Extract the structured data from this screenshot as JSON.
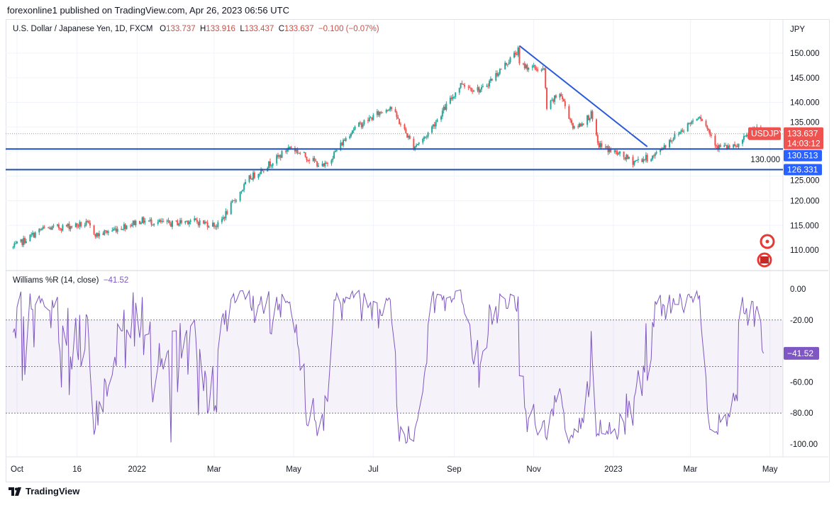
{
  "header": {
    "published": "forexonline1 published on TradingView.com, Apr 26, 2023 06:56 UTC"
  },
  "legend": {
    "symbol": "U.S. Dollar / Japanese Yen, 1D, FXCM",
    "o_label": "O",
    "o": "133.737",
    "h_label": "H",
    "h": "133.916",
    "l_label": "L",
    "l": "133.437",
    "c_label": "C",
    "c": "133.637",
    "change": "−0.100 (−0.07%)"
  },
  "indicator": {
    "name": "Williams %R (14, close)",
    "value": "−41.52"
  },
  "footer": {
    "brand": "TradingView"
  },
  "chart_data": [
    {
      "type": "candlestick",
      "title": "U.S. Dollar / Japanese Yen, 1D, FXCM",
      "currency": "JPY",
      "ylim": [
        105,
        155
      ],
      "yticks": [
        "150.000",
        "145.000",
        "140.000",
        "135.000",
        "130.000",
        "125.000",
        "120.000",
        "115.000",
        "110.000"
      ],
      "xticks": [
        {
          "label": "Oct",
          "date": "2021-10-01"
        },
        {
          "label": "16",
          "date": "2021-11-16"
        },
        {
          "label": "2022",
          "date": "2022-01-01"
        },
        {
          "label": "Mar",
          "date": "2022-03-01"
        },
        {
          "label": "May",
          "date": "2022-05-01"
        },
        {
          "label": "Jul",
          "date": "2022-07-01"
        },
        {
          "label": "Sep",
          "date": "2022-09-01"
        },
        {
          "label": "Nov",
          "date": "2022-11-01"
        },
        {
          "label": "2023",
          "date": "2023-01-01"
        },
        {
          "label": "Mar",
          "date": "2023-03-01"
        },
        {
          "label": "May",
          "date": "2023-05-01"
        }
      ],
      "approx_close_path": [
        [
          "2021-09-28",
          110.5
        ],
        [
          "2021-10-20",
          114.2
        ],
        [
          "2021-11-24",
          115.3
        ],
        [
          "2021-12-01",
          113.0
        ],
        [
          "2022-01-04",
          116.0
        ],
        [
          "2022-01-27",
          115.3
        ],
        [
          "2022-02-10",
          116.0
        ],
        [
          "2022-03-04",
          115.0
        ],
        [
          "2022-03-28",
          124.5
        ],
        [
          "2022-04-20",
          129.0
        ],
        [
          "2022-04-28",
          131.0
        ],
        [
          "2022-05-24",
          126.8
        ],
        [
          "2022-06-15",
          134.5
        ],
        [
          "2022-07-14",
          139.2
        ],
        [
          "2022-08-01",
          131.0
        ],
        [
          "2022-08-10",
          133.0
        ],
        [
          "2022-09-07",
          144.0
        ],
        [
          "2022-09-13",
          143.0
        ],
        [
          "2022-09-22",
          142.5
        ],
        [
          "2022-10-20",
          150.5
        ],
        [
          "2022-10-21",
          147.6
        ],
        [
          "2022-11-09",
          146.5
        ],
        [
          "2022-11-11",
          138.8
        ],
        [
          "2022-11-21",
          142.0
        ],
        [
          "2022-12-02",
          134.5
        ],
        [
          "2022-12-15",
          137.5
        ],
        [
          "2022-12-20",
          131.5
        ],
        [
          "2023-01-16",
          128.0
        ],
        [
          "2023-02-01",
          129.0
        ],
        [
          "2023-02-10",
          131.5
        ],
        [
          "2023-03-08",
          137.5
        ],
        [
          "2023-03-22",
          131.0
        ],
        [
          "2023-04-05",
          130.8
        ],
        [
          "2023-04-19",
          134.7
        ],
        [
          "2023-04-26",
          133.637
        ]
      ],
      "last_price": {
        "symbol": "USDJPY",
        "value": "133.637",
        "countdown": "14:03:12"
      },
      "horizontal_lines": [
        {
          "price": 130.513,
          "label": "130.513"
        },
        {
          "price": 126.331,
          "label": "126.331"
        }
      ],
      "trend_line": {
        "from": [
          "2022-10-21",
          151.5
        ],
        "to": [
          "2023-01-27",
          131.0
        ]
      },
      "colors": {
        "up": "#26a69a",
        "down": "#ef5350",
        "line": "#2962ff",
        "trend": "#2a5bd7",
        "hline": "#1f4fa8"
      }
    },
    {
      "type": "line",
      "title": "Williams %R (14, close)",
      "ylim": [
        -100,
        0
      ],
      "yticks": [
        "0.00",
        "-20.00",
        "-60.00",
        "-80.00",
        "-100.00"
      ],
      "levels": [
        -20,
        -50,
        -80
      ],
      "last_value": -41.52,
      "color": "#7e57c2"
    }
  ]
}
